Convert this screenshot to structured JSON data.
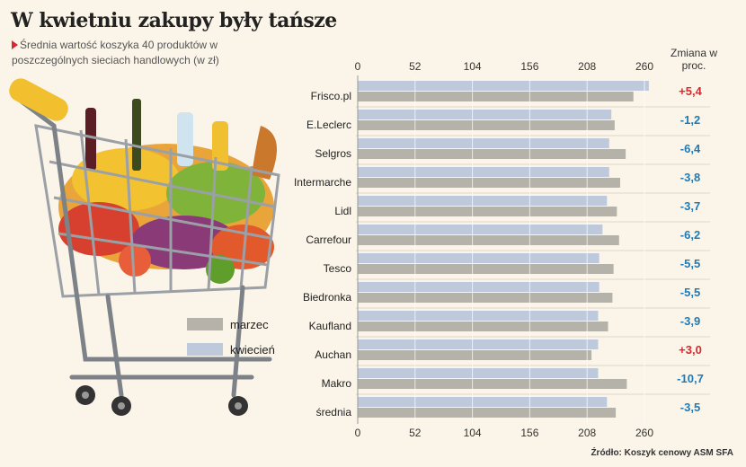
{
  "title": "W kwietniu zakupy były tańsze",
  "subtitle": "Średnia wartość koszyka 40 produktów w poszczególnych sieciach handlowych (w zł)",
  "change_header": "Zmiana w proc.",
  "source": "Źródło: Koszyk cenowy ASM SFA",
  "colors": {
    "marzec": "#b5b3a9",
    "kwiecien": "#bfc9dc",
    "positive": "#d8292f",
    "negative": "#1f7bb5",
    "separator": "#ffffff"
  },
  "chart_data": {
    "type": "bar",
    "orientation": "horizontal",
    "categories": [
      "Frisco.pl",
      "E.Leclerc",
      "Selgros",
      "Intermarche",
      "Lidl",
      "Carrefour",
      "Tesco",
      "Biedronka",
      "Kaufland",
      "Auchan",
      "Makro",
      "średnia"
    ],
    "series": [
      {
        "name": "kwiecień",
        "values": [
          264,
          230,
          228,
          228,
          226,
          222,
          219,
          219,
          218,
          218,
          218,
          226
        ]
      },
      {
        "name": "marzec",
        "values": [
          250,
          233,
          243,
          238,
          235,
          237,
          232,
          231,
          227,
          212,
          244,
          234
        ]
      }
    ],
    "change": [
      "+5,4",
      "-1,2",
      "-6,4",
      "-3,8",
      "-3,7",
      "-6,2",
      "-5,5",
      "-5,5",
      "-3,9",
      "+3,0",
      "-10,7",
      "-3,5"
    ],
    "xlim": [
      0,
      270
    ],
    "xticks": [
      0,
      52,
      104,
      156,
      208,
      260
    ],
    "tick_labels": [
      "0",
      "52",
      "104",
      "156",
      "208",
      "260"
    ],
    "legend": [
      {
        "name": "marzec"
      },
      {
        "name": "kwiecień"
      }
    ],
    "legend_position": "left"
  },
  "illustration": {
    "name": "shopping-cart-with-groceries",
    "icon": "shopping-cart-icon"
  }
}
